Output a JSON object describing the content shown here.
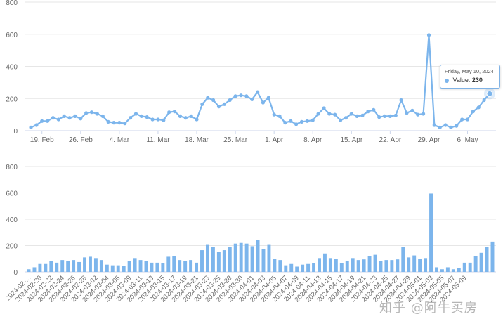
{
  "colors": {
    "series": "#7cb5ec",
    "grid": "#e6e6e6",
    "axis": "#666666",
    "baseline": "#ccd6eb"
  },
  "chart_data": [
    {
      "type": "line",
      "ylim": [
        0,
        800
      ],
      "yticks": [
        0,
        200,
        400,
        600,
        800
      ],
      "ytick_labels": [
        "0",
        "200",
        "400",
        "600",
        "800"
      ],
      "x_tick_labels": [
        "19. Feb",
        "26. Feb",
        "4. Mar",
        "11. Mar",
        "18. Mar",
        "25. Mar",
        "1. Apr",
        "8. Apr",
        "15. Apr",
        "22. Apr",
        "29. Apr",
        "6. May"
      ],
      "x_tick_dates": [
        "2024-02-19",
        "2024-02-26",
        "2024-03-04",
        "2024-03-11",
        "2024-03-18",
        "2024-03-25",
        "2024-04-01",
        "2024-04-08",
        "2024-04-15",
        "2024-04-22",
        "2024-04-29",
        "2024-05-06"
      ],
      "x": [
        "2024-02-17",
        "2024-02-18",
        "2024-02-19",
        "2024-02-20",
        "2024-02-21",
        "2024-02-22",
        "2024-02-23",
        "2024-02-24",
        "2024-02-25",
        "2024-02-26",
        "2024-02-27",
        "2024-02-28",
        "2024-02-29",
        "2024-03-01",
        "2024-03-02",
        "2024-03-03",
        "2024-03-04",
        "2024-03-05",
        "2024-03-06",
        "2024-03-07",
        "2024-03-08",
        "2024-03-09",
        "2024-03-10",
        "2024-03-11",
        "2024-03-12",
        "2024-03-13",
        "2024-03-14",
        "2024-03-15",
        "2024-03-16",
        "2024-03-17",
        "2024-03-18",
        "2024-03-19",
        "2024-03-20",
        "2024-03-21",
        "2024-03-22",
        "2024-03-23",
        "2024-03-24",
        "2024-03-25",
        "2024-03-26",
        "2024-03-27",
        "2024-03-28",
        "2024-03-29",
        "2024-03-30",
        "2024-03-31",
        "2024-04-01",
        "2024-04-02",
        "2024-04-03",
        "2024-04-04",
        "2024-04-05",
        "2024-04-06",
        "2024-04-07",
        "2024-04-08",
        "2024-04-09",
        "2024-04-10",
        "2024-04-11",
        "2024-04-12",
        "2024-04-13",
        "2024-04-14",
        "2024-04-15",
        "2024-04-16",
        "2024-04-17",
        "2024-04-18",
        "2024-04-19",
        "2024-04-20",
        "2024-04-21",
        "2024-04-22",
        "2024-04-23",
        "2024-04-24",
        "2024-04-25",
        "2024-04-26",
        "2024-04-27",
        "2024-04-28",
        "2024-04-29",
        "2024-04-30",
        "2024-05-01",
        "2024-05-02",
        "2024-05-03",
        "2024-05-04",
        "2024-05-05",
        "2024-05-06",
        "2024-05-07",
        "2024-05-08",
        "2024-05-09",
        "2024-05-10"
      ],
      "values": [
        20,
        35,
        60,
        60,
        80,
        70,
        90,
        80,
        90,
        75,
        110,
        115,
        105,
        90,
        55,
        50,
        50,
        45,
        80,
        105,
        90,
        85,
        70,
        70,
        65,
        115,
        120,
        90,
        80,
        90,
        70,
        165,
        205,
        190,
        150,
        165,
        190,
        215,
        220,
        215,
        195,
        240,
        175,
        205,
        100,
        90,
        50,
        60,
        40,
        55,
        60,
        65,
        105,
        140,
        105,
        100,
        65,
        80,
        105,
        90,
        95,
        120,
        130,
        85,
        90,
        90,
        95,
        190,
        110,
        125,
        100,
        105,
        595,
        35,
        20,
        35,
        20,
        30,
        70,
        70,
        120,
        145,
        190,
        230
      ],
      "tooltip": {
        "date": "Friday, May 10, 2024",
        "series_label": "Value:",
        "value": "230"
      }
    },
    {
      "type": "bar",
      "ylim": [
        0,
        800
      ],
      "yticks": [
        0,
        200,
        400,
        600,
        800
      ],
      "ytick_labels": [
        "0",
        "200",
        "400",
        "600",
        "800"
      ],
      "categories": [
        "2024-02-17",
        "2024-02-18",
        "2024-02-19",
        "2024-02-20",
        "2024-02-21",
        "2024-02-22",
        "2024-02-23",
        "2024-02-24",
        "2024-02-25",
        "2024-02-26",
        "2024-02-27",
        "2024-02-28",
        "2024-02-29",
        "2024-03-01",
        "2024-03-02",
        "2024-03-03",
        "2024-03-04",
        "2024-03-05",
        "2024-03-06",
        "2024-03-07",
        "2024-03-08",
        "2024-03-09",
        "2024-03-10",
        "2024-03-11",
        "2024-03-12",
        "2024-03-13",
        "2024-03-14",
        "2024-03-15",
        "2024-03-16",
        "2024-03-17",
        "2024-03-18",
        "2024-03-19",
        "2024-03-20",
        "2024-03-21",
        "2024-03-22",
        "2024-03-23",
        "2024-03-24",
        "2024-03-25",
        "2024-03-26",
        "2024-03-27",
        "2024-03-28",
        "2024-03-29",
        "2024-03-30",
        "2024-03-31",
        "2024-04-01",
        "2024-04-02",
        "2024-04-03",
        "2024-04-04",
        "2024-04-05",
        "2024-04-06",
        "2024-04-07",
        "2024-04-08",
        "2024-04-09",
        "2024-04-10",
        "2024-04-11",
        "2024-04-12",
        "2024-04-13",
        "2024-04-14",
        "2024-04-15",
        "2024-04-16",
        "2024-04-17",
        "2024-04-18",
        "2024-04-19",
        "2024-04-20",
        "2024-04-21",
        "2024-04-22",
        "2024-04-23",
        "2024-04-24",
        "2024-04-25",
        "2024-04-26",
        "2024-04-27",
        "2024-04-28",
        "2024-04-29",
        "2024-04-30",
        "2024-05-01",
        "2024-05-02",
        "2024-05-03",
        "2024-05-04",
        "2024-05-05",
        "2024-05-06",
        "2024-05-07",
        "2024-05-08",
        "2024-05-09",
        "2024-05-10"
      ],
      "tick_labels": [
        "2024-02-...",
        "2024-02-20",
        "2024-02-22",
        "2024-02-24",
        "2024-02-26",
        "2024-02-28",
        "2024-03-02",
        "2024-03-04",
        "2024-03-06",
        "2024-03-09",
        "2024-03-11",
        "2024-03-13",
        "2024-03-15",
        "2024-03-17",
        "2024-03-19",
        "2024-03-21",
        "2024-03-23",
        "2024-03-25",
        "2024-03-28",
        "2024-03-30",
        "2024-04-01",
        "2024-04-03",
        "2024-04-05",
        "2024-04-07",
        "2024-04-09",
        "2024-04-11",
        "2024-04-13",
        "2024-04-15",
        "2024-04-17",
        "2024-04-19",
        "2024-04-21",
        "2024-04-23",
        "2024-04-25",
        "2024-04-27",
        "2024-04-29",
        "2024-05-01",
        "2024-05-03",
        "2024-05-05",
        "2024-05-07",
        "2024-05-09"
      ],
      "values": [
        20,
        35,
        60,
        60,
        80,
        70,
        90,
        80,
        90,
        75,
        110,
        115,
        105,
        90,
        55,
        50,
        50,
        45,
        80,
        105,
        90,
        85,
        70,
        70,
        65,
        115,
        120,
        90,
        80,
        90,
        70,
        165,
        205,
        190,
        150,
        165,
        190,
        215,
        220,
        215,
        195,
        240,
        175,
        205,
        100,
        90,
        50,
        60,
        40,
        55,
        60,
        65,
        105,
        140,
        105,
        100,
        65,
        80,
        105,
        90,
        95,
        120,
        130,
        85,
        90,
        90,
        95,
        190,
        110,
        125,
        100,
        105,
        595,
        35,
        20,
        35,
        20,
        30,
        70,
        70,
        120,
        145,
        190,
        230
      ]
    }
  ],
  "watermark": "知乎 @阿牛买房"
}
